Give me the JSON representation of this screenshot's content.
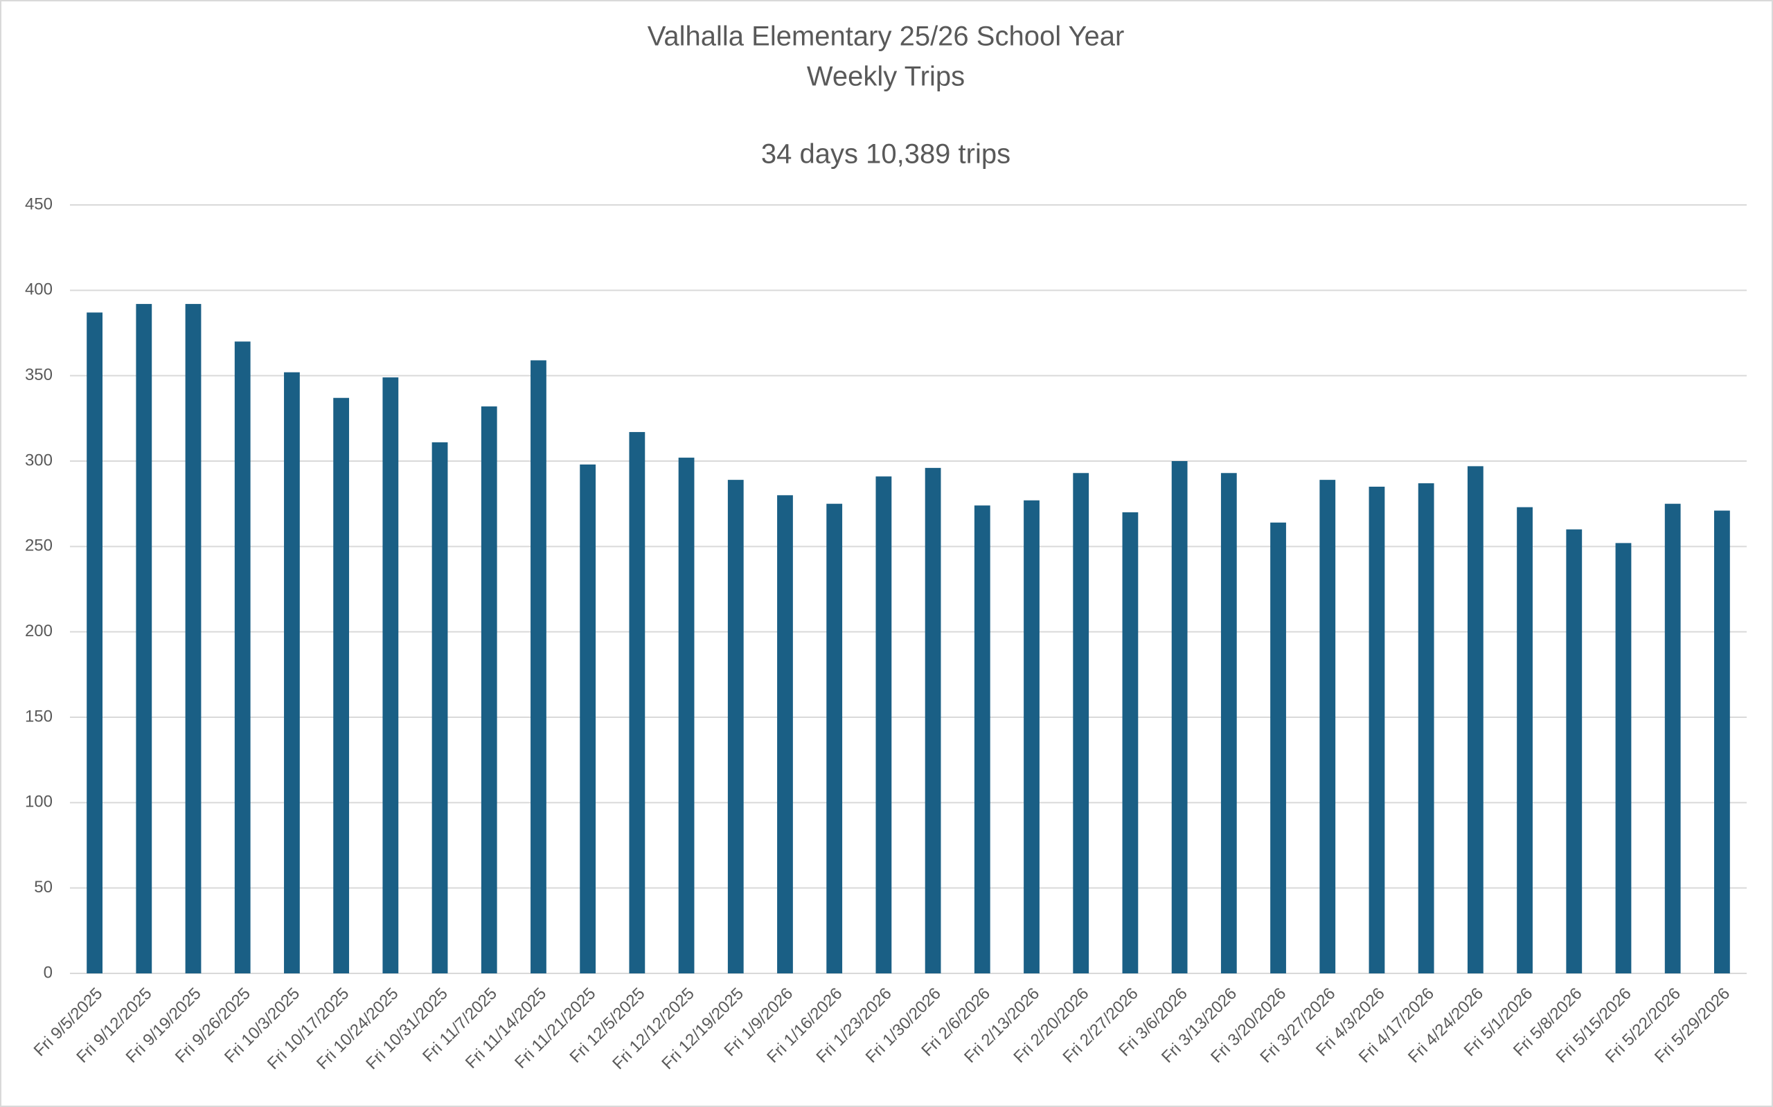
{
  "chart_data": {
    "type": "bar",
    "title": "Valhalla Elementary 25/26 School Year",
    "subtitle": "Weekly Trips",
    "annotation": "34 days 10,389 trips",
    "categories": [
      "Fri 9/5/2025",
      "Fri 9/12/2025",
      "Fri 9/19/2025",
      "Fri 9/26/2025",
      "Fri 10/3/2025",
      "Fri 10/17/2025",
      "Fri 10/24/2025",
      "Fri 10/31/2025",
      "Fri 11/7/2025",
      "Fri 11/14/2025",
      "Fri 11/21/2025",
      "Fri 12/5/2025",
      "Fri 12/12/2025",
      "Fri 12/19/2025",
      "Fri 1/9/2026",
      "Fri 1/16/2026",
      "Fri 1/23/2026",
      "Fri 1/30/2026",
      "Fri 2/6/2026",
      "Fri 2/13/2026",
      "Fri 2/20/2026",
      "Fri 2/27/2026",
      "Fri 3/6/2026",
      "Fri 3/13/2026",
      "Fri 3/20/2026",
      "Fri 3/27/2026",
      "Fri 4/3/2026",
      "Fri 4/17/2026",
      "Fri 4/24/2026",
      "Fri 5/1/2026",
      "Fri 5/8/2026",
      "Fri 5/15/2026",
      "Fri 5/22/2026",
      "Fri 5/29/2026"
    ],
    "values": [
      387,
      392,
      392,
      370,
      352,
      337,
      349,
      311,
      332,
      359,
      298,
      317,
      302,
      289,
      280,
      275,
      291,
      296,
      274,
      277,
      293,
      270,
      300,
      293,
      264,
      289,
      285,
      287,
      297,
      273,
      260,
      252,
      275,
      271
    ],
    "color": "#1a5f85",
    "ylim": [
      0,
      450
    ],
    "yticks": [
      0,
      50,
      100,
      150,
      200,
      250,
      300,
      350,
      400,
      450
    ],
    "grid": true
  }
}
